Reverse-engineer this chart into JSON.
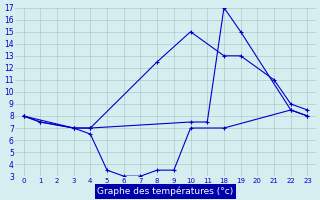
{
  "bg_color": "#d6eef0",
  "line_color": "#0000cc",
  "grid_color": "#aacccc",
  "xlabel": "Graphe des températures (°c)",
  "xlabel_text_color": "#ffffff",
  "xlabel_bg": "#0000aa",
  "ylim": [
    3,
    17
  ],
  "yticks": [
    3,
    4,
    5,
    6,
    7,
    8,
    9,
    10,
    11,
    12,
    13,
    14,
    15,
    16,
    17
  ],
  "hour_labels": [
    "0",
    "1",
    "2",
    "3",
    "4",
    "5",
    "6",
    "7",
    "8",
    "9",
    "10",
    "11",
    "18",
    "19",
    "20",
    "21",
    "22",
    "23"
  ],
  "hours": [
    0,
    1,
    2,
    3,
    4,
    5,
    6,
    7,
    8,
    9,
    10,
    11,
    18,
    19,
    20,
    21,
    22,
    23
  ],
  "line1_hours": [
    0,
    1,
    3,
    4,
    10,
    11,
    18,
    19,
    22,
    23
  ],
  "line1_y": [
    8.0,
    7.5,
    7.0,
    7.0,
    7.5,
    7.5,
    17.0,
    15.0,
    8.5,
    8.0
  ],
  "line2_hours": [
    0,
    3,
    4,
    8,
    10,
    18,
    19,
    21,
    22,
    23
  ],
  "line2_y": [
    8.0,
    7.0,
    7.0,
    12.5,
    15.0,
    13.0,
    13.0,
    11.0,
    9.0,
    8.5
  ],
  "line3_hours": [
    0,
    1,
    3,
    4,
    5,
    6,
    7,
    8,
    9,
    10,
    18,
    22,
    23
  ],
  "line3_y": [
    8.0,
    7.5,
    7.0,
    6.5,
    3.5,
    3.0,
    3.0,
    3.5,
    3.5,
    7.0,
    7.0,
    8.5,
    8.0
  ]
}
